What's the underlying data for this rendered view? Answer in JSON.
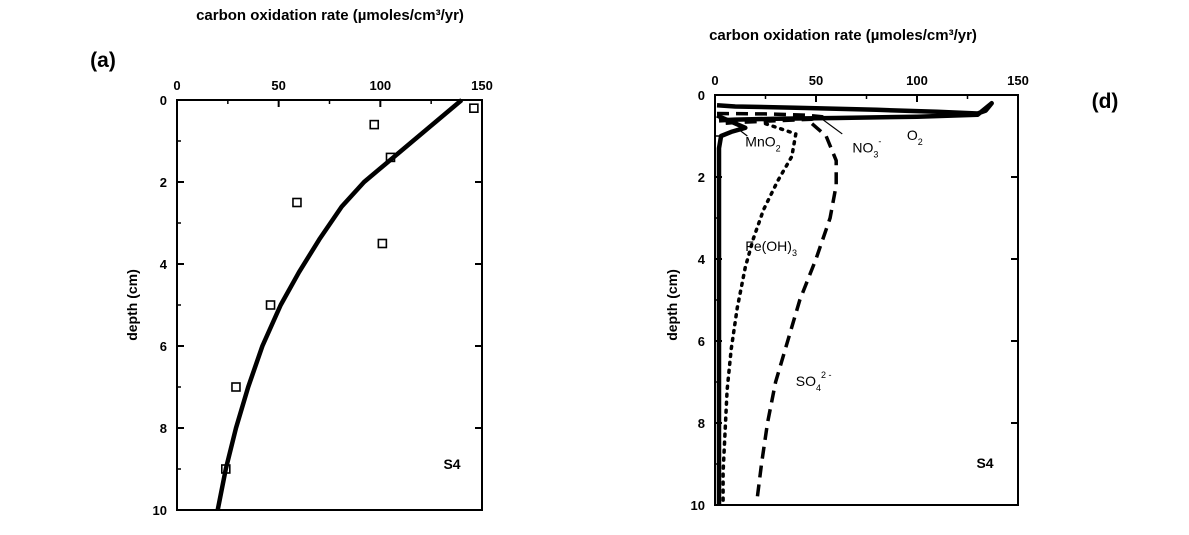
{
  "chart_data": [
    {
      "panel": "(a)",
      "type": "scatter",
      "title": "carbon oxidation rate (µmoles/cm³/yr)",
      "xlabel": "carbon oxidation rate (µmoles/cm³/yr)",
      "ylabel": "depth (cm)",
      "xlim": [
        0,
        150
      ],
      "ylim": [
        10,
        0
      ],
      "x_axis_position": "top",
      "xticks": [
        "0",
        "50",
        "100",
        "150"
      ],
      "yticks": [
        "0",
        "2",
        "4",
        "6",
        "8",
        "10"
      ],
      "annotation": "S4",
      "series": [
        {
          "kind": "points",
          "marker": "open-square",
          "points": [
            [
              146,
              0.2
            ],
            [
              97,
              0.6
            ],
            [
              105,
              1.4
            ],
            [
              59,
              2.5
            ],
            [
              101,
              3.5
            ],
            [
              46,
              5.0
            ],
            [
              29,
              7.0
            ],
            [
              24,
              9.0
            ]
          ]
        },
        {
          "kind": "line",
          "style": "solid",
          "points": [
            [
              140,
              0
            ],
            [
              128,
              0.5
            ],
            [
              116,
              1.0
            ],
            [
              104,
              1.5
            ],
            [
              92,
              2.0
            ],
            [
              81,
              2.6
            ],
            [
              70,
              3.4
            ],
            [
              60,
              4.2
            ],
            [
              51,
              5.0
            ],
            [
              42,
              6.0
            ],
            [
              35,
              7.0
            ],
            [
              29,
              8.0
            ],
            [
              24,
              9.0
            ],
            [
              20,
              10.0
            ]
          ]
        }
      ]
    },
    {
      "panel": "(d)",
      "type": "line",
      "title": "carbon oxidation rate (µmoles/cm³/yr)",
      "xlabel": "carbon oxidation rate (µmoles/cm³/yr)",
      "ylabel": "depth (cm)",
      "xlim": [
        0,
        150
      ],
      "ylim": [
        10,
        0
      ],
      "x_axis_position": "top",
      "xticks": [
        "0",
        "50",
        "100",
        "150"
      ],
      "yticks": [
        "0",
        "2",
        "4",
        "6",
        "8",
        "10"
      ],
      "annotation": "S4",
      "series": [
        {
          "name": "O₂",
          "label": {
            "main": "O",
            "sub": "2"
          },
          "style": "solid-thick",
          "points": [
            [
              1,
              0.25
            ],
            [
              10,
              0.28
            ],
            [
              40,
              0.31
            ],
            [
              80,
              0.36
            ],
            [
              110,
              0.41
            ],
            [
              130,
              0.45
            ],
            [
              134,
              0.38
            ],
            [
              136,
              0.26
            ],
            [
              137,
              0.2
            ],
            [
              130,
              0.48
            ],
            [
              100,
              0.53
            ],
            [
              60,
              0.56
            ],
            [
              30,
              0.58
            ],
            [
              10,
              0.6
            ],
            [
              2,
              0.62
            ]
          ]
        },
        {
          "name": "NO₃⁻",
          "label": {
            "main": "NO",
            "sub": "3",
            "sup": "-"
          },
          "style": "dashed",
          "points": [
            [
              1,
              0.45
            ],
            [
              25,
              0.46
            ],
            [
              45,
              0.49
            ],
            [
              53,
              0.53
            ],
            [
              48,
              0.59
            ],
            [
              30,
              0.63
            ],
            [
              10,
              0.67
            ],
            [
              2,
              0.7
            ]
          ]
        },
        {
          "name": "MnO₂",
          "label": {
            "main": "MnO",
            "sub": "2"
          },
          "style": "solid-thick",
          "points": [
            [
              1,
              0.5
            ],
            [
              8,
              0.65
            ],
            [
              15,
              0.8
            ],
            [
              8,
              0.9
            ],
            [
              3,
              1.0
            ],
            [
              2,
              1.3
            ],
            [
              2,
              2.0
            ],
            [
              2,
              4.0
            ],
            [
              2,
              6.0
            ],
            [
              2,
              8.0
            ],
            [
              2,
              10.0
            ]
          ]
        },
        {
          "name": "Fe(OH)₃",
          "label": {
            "main": "Fe(OH)",
            "sub": "3"
          },
          "style": "dotted",
          "points": [
            [
              25,
              0.7
            ],
            [
              40,
              0.95
            ],
            [
              38,
              1.5
            ],
            [
              31,
              2.1
            ],
            [
              24,
              2.8
            ],
            [
              19,
              3.5
            ],
            [
              15,
              4.2
            ],
            [
              11,
              5.2
            ],
            [
              8,
              6.2
            ],
            [
              6,
              7.2
            ],
            [
              5,
              8.2
            ],
            [
              4,
              9.2
            ],
            [
              4,
              10.0
            ]
          ]
        },
        {
          "name": "SO₄²⁻",
          "label": {
            "main": "SO",
            "sub": "4",
            "sup": "2 -"
          },
          "style": "dashed",
          "points": [
            [
              48,
              0.7
            ],
            [
              55,
              1.0
            ],
            [
              60,
              1.6
            ],
            [
              60,
              2.2
            ],
            [
              57,
              3.0
            ],
            [
              50,
              4.0
            ],
            [
              42,
              5.0
            ],
            [
              36,
              6.0
            ],
            [
              30,
              7.0
            ],
            [
              26,
              8.0
            ],
            [
              23,
              9.0
            ],
            [
              21,
              9.8
            ]
          ]
        }
      ]
    }
  ]
}
